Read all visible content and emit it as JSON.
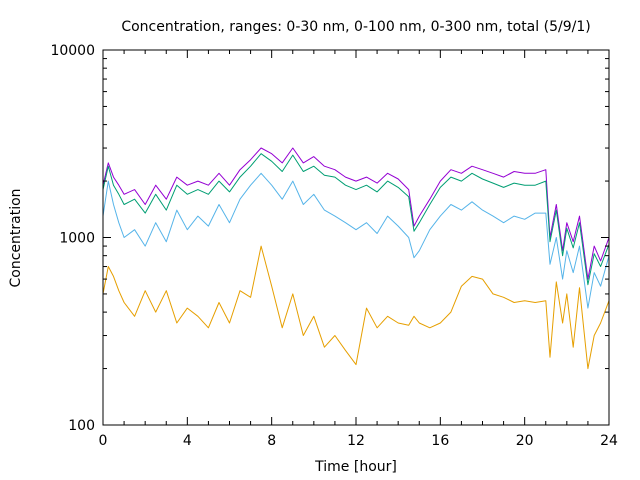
{
  "chart_data": {
    "type": "line",
    "title": "Concentration, ranges: 0-30 nm, 0-100 nm, 0-300 nm, total (5/9/1)",
    "xlabel": "Time [hour]",
    "ylabel": "Concentration",
    "xlim": [
      0,
      24
    ],
    "ylim": [
      100,
      10000
    ],
    "y_scale": "log",
    "x_ticks": [
      0,
      4,
      8,
      12,
      16,
      20,
      24
    ],
    "x_tick_labels": [
      "0",
      "4",
      "8",
      "12",
      "16",
      "20",
      "24"
    ],
    "y_ticks": [
      100,
      1000,
      10000
    ],
    "y_tick_labels": [
      "100",
      "1000",
      "10000"
    ],
    "grid": false,
    "legend": "none",
    "x": [
      0,
      0.25,
      0.5,
      0.75,
      1,
      1.5,
      2,
      2.5,
      3,
      3.5,
      4,
      4.5,
      5,
      5.5,
      6,
      6.5,
      7,
      7.5,
      8,
      8.5,
      9,
      9.5,
      10,
      10.5,
      11,
      11.5,
      12,
      12.5,
      13,
      13.5,
      14,
      14.5,
      14.75,
      15,
      15.5,
      16,
      16.5,
      17,
      17.5,
      18,
      18.5,
      19,
      19.5,
      20,
      20.5,
      21,
      21.2,
      21.5,
      21.8,
      22,
      22.3,
      22.6,
      23,
      23.3,
      23.6,
      24
    ],
    "series": [
      {
        "color": "#9400d3",
        "values": [
          1900,
          2500,
          2100,
          1900,
          1700,
          1800,
          1500,
          1900,
          1600,
          2100,
          1900,
          2000,
          1900,
          2200,
          1900,
          2300,
          2600,
          3000,
          2800,
          2500,
          3000,
          2500,
          2700,
          2400,
          2300,
          2100,
          2000,
          2100,
          1950,
          2200,
          2050,
          1800,
          1150,
          1300,
          1600,
          2000,
          2300,
          2200,
          2400,
          2300,
          2200,
          2100,
          2250,
          2200,
          2200,
          2300,
          1000,
          1500,
          850,
          1200,
          950,
          1300,
          600,
          900,
          750,
          1000
        ]
      },
      {
        "color": "#009e73",
        "values": [
          1800,
          2400,
          1900,
          1700,
          1500,
          1600,
          1350,
          1700,
          1400,
          1900,
          1700,
          1800,
          1700,
          2000,
          1750,
          2100,
          2400,
          2800,
          2550,
          2250,
          2750,
          2250,
          2400,
          2150,
          2100,
          1900,
          1800,
          1900,
          1750,
          2000,
          1850,
          1650,
          1080,
          1200,
          1500,
          1850,
          2100,
          2000,
          2200,
          2050,
          1950,
          1850,
          1950,
          1900,
          1900,
          2000,
          950,
          1400,
          800,
          1120,
          880,
          1200,
          560,
          820,
          700,
          920
        ]
      },
      {
        "color": "#56b4e9",
        "values": [
          1300,
          2000,
          1500,
          1200,
          1000,
          1100,
          900,
          1200,
          950,
          1400,
          1100,
          1300,
          1150,
          1500,
          1200,
          1600,
          1900,
          2200,
          1900,
          1600,
          2000,
          1500,
          1700,
          1400,
          1300,
          1200,
          1100,
          1200,
          1050,
          1300,
          1150,
          1000,
          780,
          850,
          1100,
          1300,
          1500,
          1400,
          1550,
          1400,
          1300,
          1200,
          1300,
          1250,
          1350,
          1350,
          720,
          1000,
          600,
          850,
          650,
          900,
          420,
          650,
          550,
          800
        ]
      },
      {
        "color": "#e69f00",
        "values": [
          500,
          700,
          620,
          520,
          450,
          380,
          520,
          400,
          520,
          350,
          420,
          380,
          330,
          450,
          350,
          520,
          480,
          900,
          550,
          330,
          500,
          300,
          380,
          260,
          300,
          250,
          210,
          420,
          330,
          380,
          350,
          340,
          380,
          350,
          330,
          350,
          400,
          550,
          620,
          600,
          500,
          480,
          450,
          460,
          450,
          460,
          230,
          580,
          350,
          500,
          260,
          540,
          200,
          300,
          350,
          460
        ]
      }
    ]
  }
}
